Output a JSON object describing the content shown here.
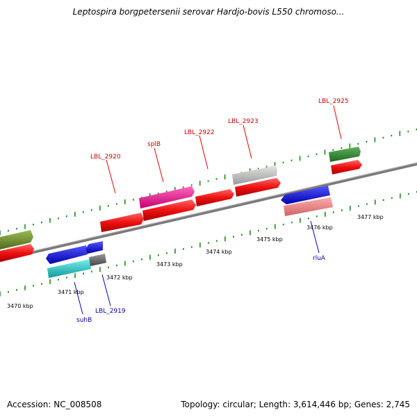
{
  "title": "Leptospira borgpetersenii serovar Hardjo-bovis L550 chromoso...",
  "footer": {
    "accession": "Accession: NC_008508",
    "topology": "Topology: circular; Length: 3,614,446 bp; Genes: 2,745"
  },
  "scale_labels": [
    {
      "text": "3470 kbp",
      "kbp": 3470
    },
    {
      "text": "3471 kbp",
      "kbp": 3471
    },
    {
      "text": "3472 kbp",
      "kbp": 3472
    },
    {
      "text": "3473 kbp",
      "kbp": 3473
    },
    {
      "text": "3474 kbp",
      "kbp": 3474
    },
    {
      "text": "3475 kbp",
      "kbp": 3475
    },
    {
      "text": "3476 kbp",
      "kbp": 3476
    },
    {
      "text": "3477 kbp",
      "kbp": 3477
    }
  ],
  "top_labels": [
    {
      "name": "LBL_2920"
    },
    {
      "name": "splB"
    },
    {
      "name": "LBL_2922"
    },
    {
      "name": "LBL_2923"
    },
    {
      "name": "LBL_2925"
    }
  ],
  "bottom_labels": [
    {
      "name": "suhB"
    },
    {
      "name": "LBL_2919"
    },
    {
      "name": "rluA"
    }
  ],
  "colors": {
    "backbone": "#7a7a7a",
    "tick": "#1a8a1a",
    "red": "#ee1111",
    "green": "#2a8a2a",
    "olive": "#6b8e23",
    "pink": "#ee1188",
    "gray": "#c0c0c0",
    "blue": "#1111ee",
    "cyan": "#11cccc",
    "darkgray": "#707070",
    "salmon": "#ee8888",
    "label_top": "#cc0000",
    "label_bottom": "#0000aa"
  }
}
